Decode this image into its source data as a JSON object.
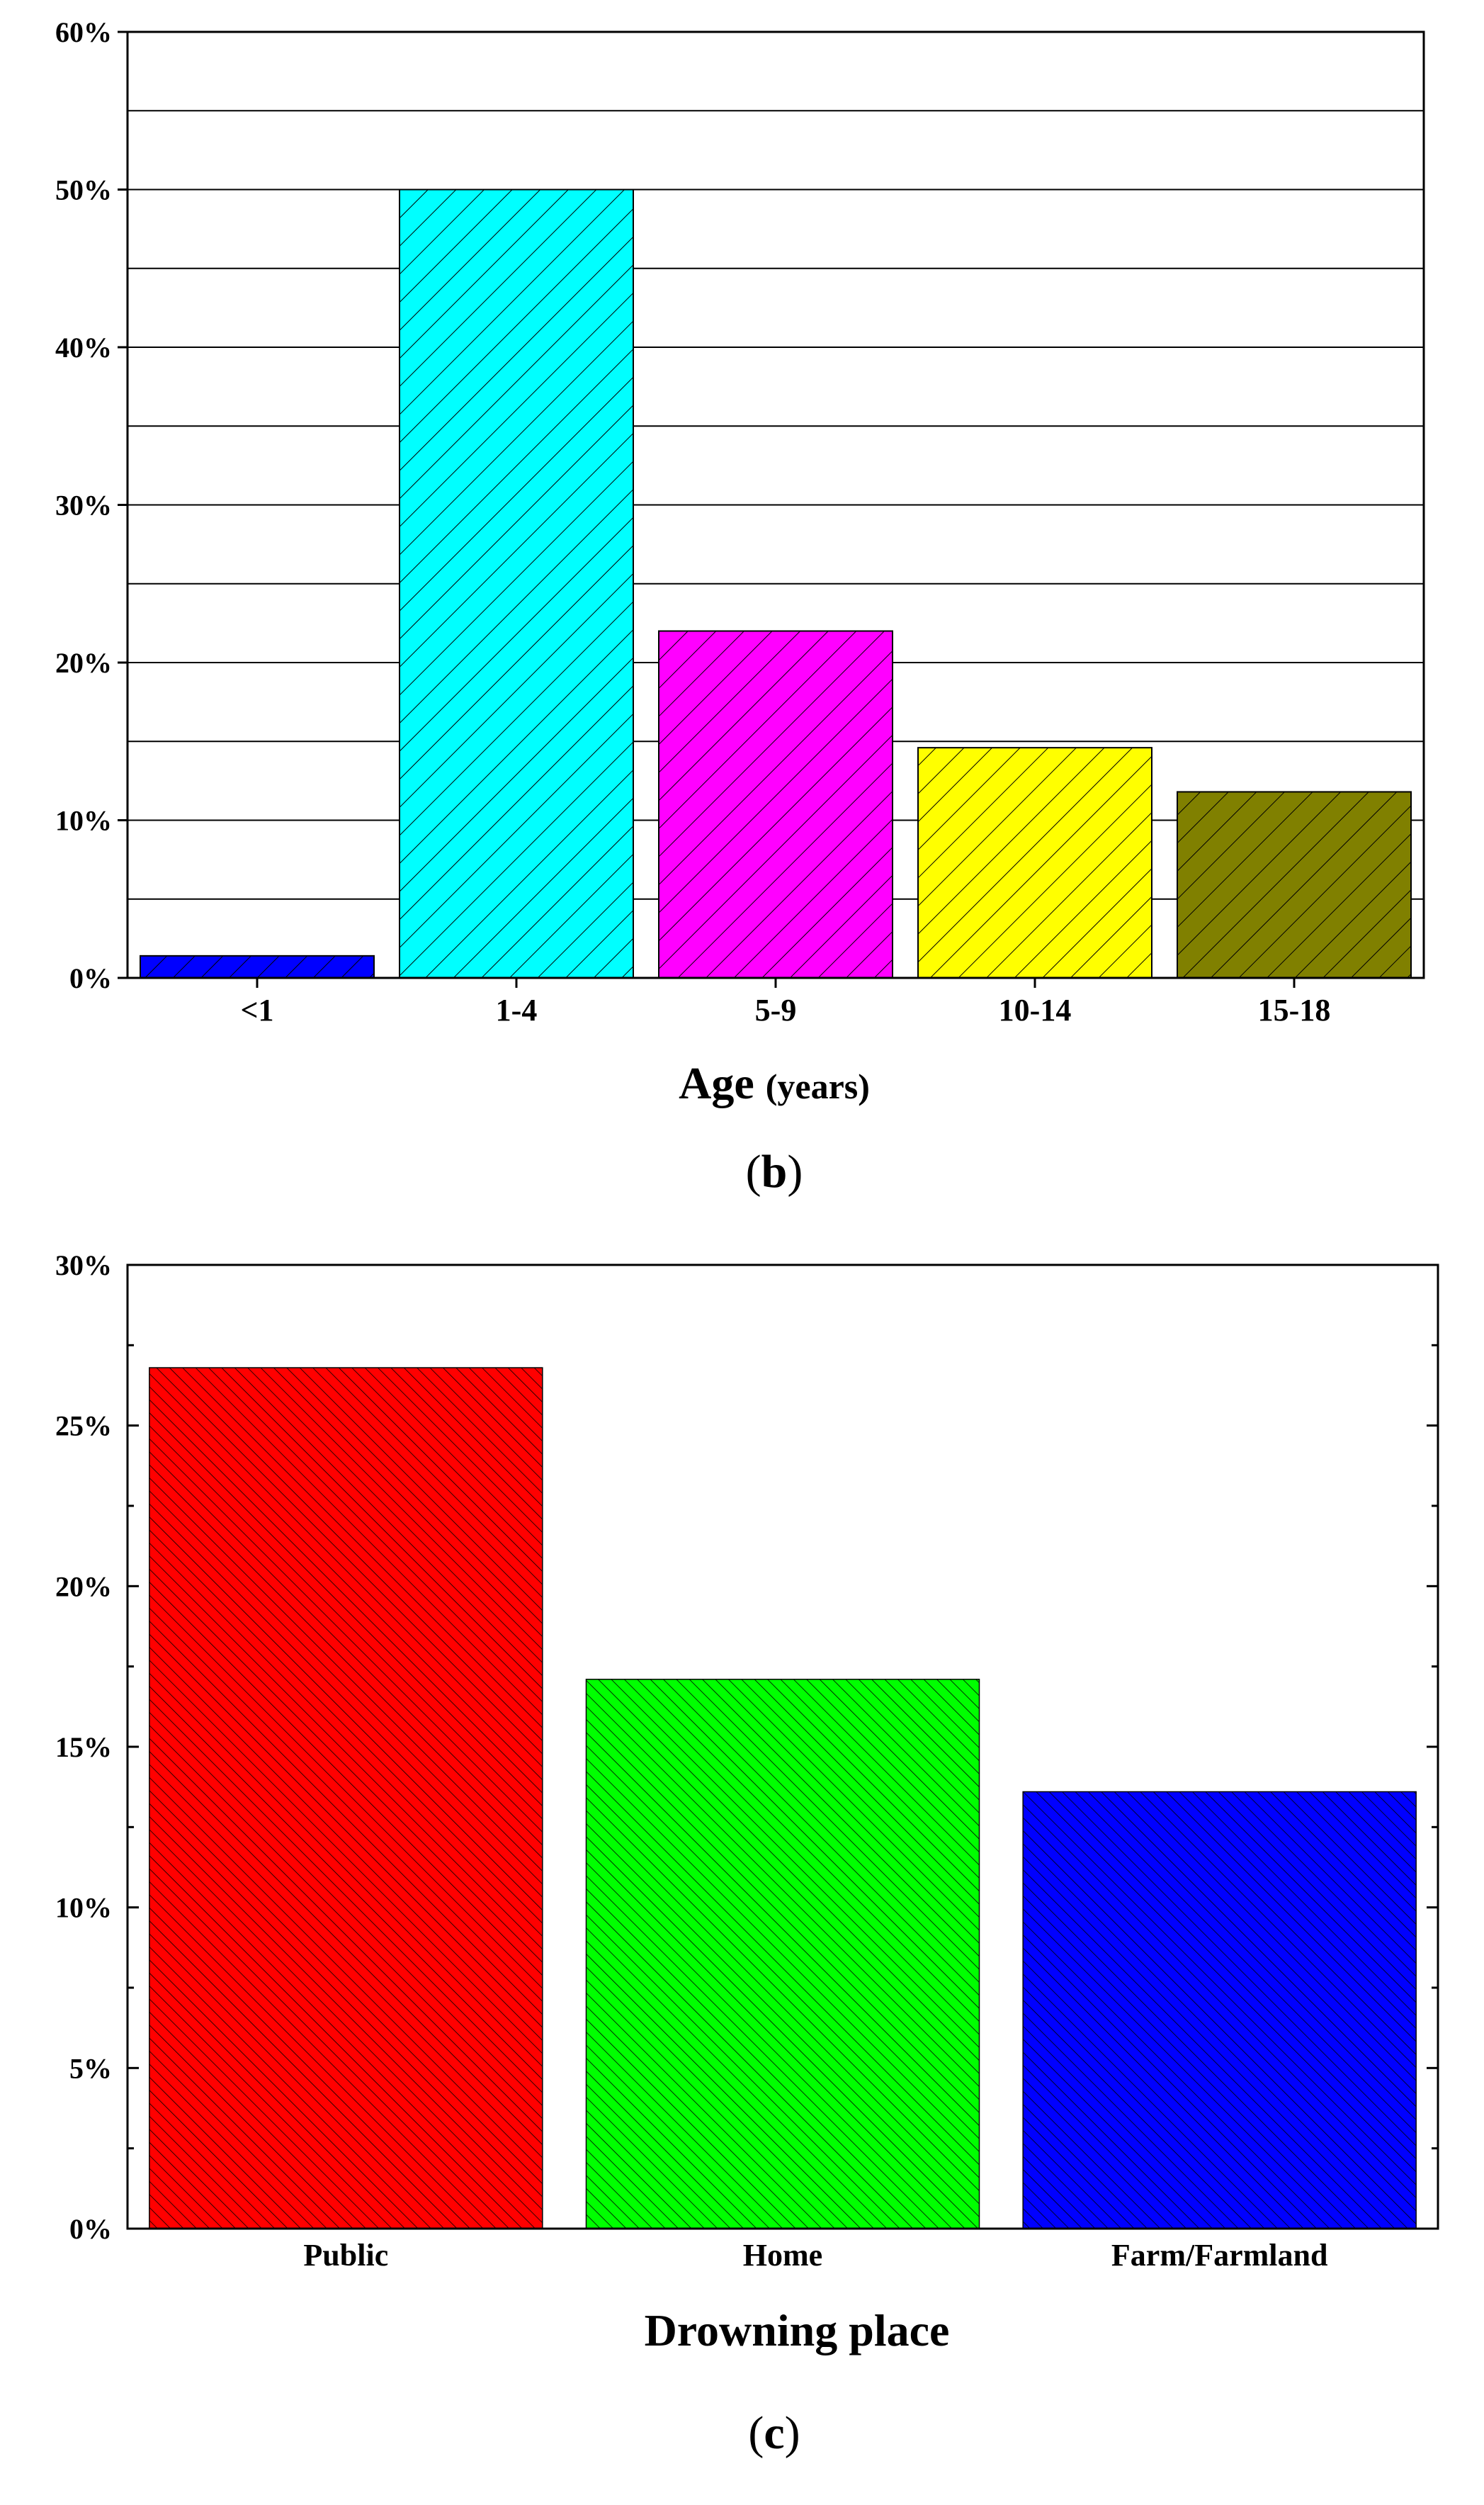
{
  "chart_data": [
    {
      "type": "bar",
      "panel": "(b)",
      "panel_letter": "b",
      "categories": [
        "<1",
        "1-4",
        "5-9",
        "10-14",
        "15-18"
      ],
      "values": [
        1.4,
        50.0,
        22.0,
        14.6,
        11.8
      ],
      "colors": [
        "#0000ff",
        "#00ffff",
        "#ff00ff",
        "#ffff00",
        "#808000"
      ],
      "ylim": [
        0,
        60
      ],
      "yticks": [
        0,
        10,
        20,
        30,
        40,
        50,
        60
      ],
      "ytick_labels": [
        "0%",
        "10%",
        "20%",
        "30%",
        "40%",
        "50%",
        "60%"
      ],
      "xlabel_main": "Age",
      "xlabel_sub": "(years)",
      "ylabel": "",
      "title": "",
      "grid": true,
      "hatch": "diagonal"
    },
    {
      "type": "bar",
      "panel": "(c)",
      "panel_letter": "c",
      "categories": [
        "Public",
        "Home",
        "Farm/Farmland"
      ],
      "values": [
        26.8,
        17.1,
        13.6
      ],
      "colors": [
        "#ff0000",
        "#00ff00",
        "#0000ff"
      ],
      "ylim": [
        0,
        30
      ],
      "yticks": [
        0,
        5,
        10,
        15,
        20,
        25,
        30
      ],
      "ytick_labels": [
        "0%",
        "5%",
        "10%",
        "15%",
        "20%",
        "25%",
        "30%"
      ],
      "xlabel": "Drowning place",
      "ylabel": "",
      "title": "",
      "grid": false,
      "hatch": "diagonal-dense"
    }
  ]
}
